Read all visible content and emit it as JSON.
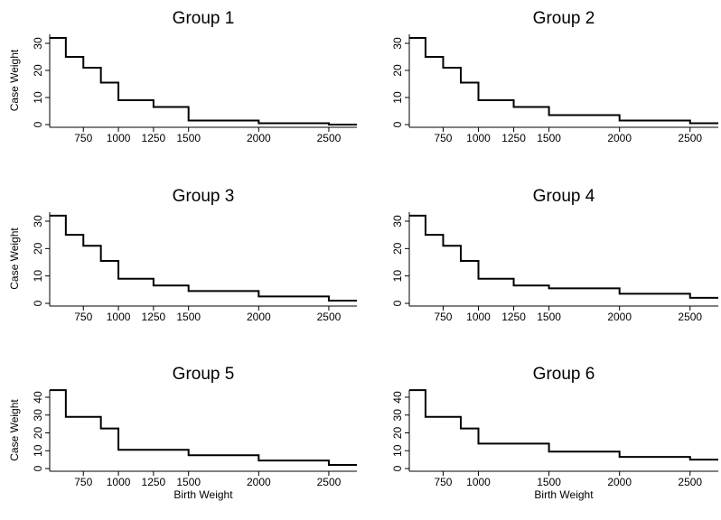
{
  "chart_data": [
    {
      "type": "line",
      "title": "Group 1",
      "xlabel": "",
      "ylabel": "Case Weight",
      "xlim": [
        510,
        2700
      ],
      "ylim": [
        0,
        32
      ],
      "xticks": [
        750,
        1000,
        1250,
        1500,
        2000,
        2500
      ],
      "xticklabels": [
        "750",
        "1000",
        "1250",
        "1500",
        "2000",
        "2500"
      ],
      "yticks": [
        0,
        10,
        20,
        30
      ],
      "yticklabels": [
        "0",
        "10",
        "20",
        "30"
      ],
      "step": "post",
      "x": [
        510,
        625,
        750,
        875,
        1000,
        1250,
        1500,
        2000,
        2500,
        2700
      ],
      "y": [
        32,
        25,
        21,
        15.5,
        9,
        6.5,
        1.5,
        0.5,
        0,
        0
      ]
    },
    {
      "type": "line",
      "title": "Group 2",
      "xlabel": "",
      "ylabel": "",
      "xlim": [
        510,
        2700
      ],
      "ylim": [
        0,
        32
      ],
      "xticks": [
        750,
        1000,
        1250,
        1500,
        2000,
        2500
      ],
      "xticklabels": [
        "750",
        "1000",
        "1250",
        "1500",
        "2000",
        "2500"
      ],
      "yticks": [
        0,
        10,
        20,
        30
      ],
      "yticklabels": [
        "0",
        "10",
        "20",
        "30"
      ],
      "step": "post",
      "x": [
        510,
        625,
        750,
        875,
        1000,
        1250,
        1500,
        2000,
        2500,
        2700
      ],
      "y": [
        32,
        25,
        21,
        15.5,
        9,
        6.5,
        3.5,
        1.5,
        0.5,
        0.5
      ]
    },
    {
      "type": "line",
      "title": "Group 3",
      "xlabel": "",
      "ylabel": "Case Weight",
      "xlim": [
        510,
        2700
      ],
      "ylim": [
        0,
        32
      ],
      "xticks": [
        750,
        1000,
        1250,
        1500,
        2000,
        2500
      ],
      "xticklabels": [
        "750",
        "1000",
        "1250",
        "1500",
        "2000",
        "2500"
      ],
      "yticks": [
        0,
        10,
        20,
        30
      ],
      "yticklabels": [
        "0",
        "10",
        "20",
        "30"
      ],
      "step": "post",
      "x": [
        510,
        625,
        750,
        875,
        1000,
        1250,
        1500,
        2000,
        2500,
        2700
      ],
      "y": [
        32,
        25,
        21,
        15.5,
        9,
        6.5,
        4.5,
        2.5,
        1,
        1
      ]
    },
    {
      "type": "line",
      "title": "Group 4",
      "xlabel": "",
      "ylabel": "",
      "xlim": [
        510,
        2700
      ],
      "ylim": [
        0,
        32
      ],
      "xticks": [
        750,
        1000,
        1250,
        1500,
        2000,
        2500
      ],
      "xticklabels": [
        "750",
        "1000",
        "1250",
        "1500",
        "2000",
        "2500"
      ],
      "yticks": [
        0,
        10,
        20,
        30
      ],
      "yticklabels": [
        "0",
        "10",
        "20",
        "30"
      ],
      "step": "post",
      "x": [
        510,
        625,
        750,
        875,
        1000,
        1250,
        1500,
        2000,
        2500,
        2700
      ],
      "y": [
        32,
        25,
        21,
        15.5,
        9,
        6.5,
        5.5,
        3.5,
        2,
        2
      ]
    },
    {
      "type": "line",
      "title": "Group 5",
      "xlabel": "Birth Weight",
      "ylabel": "Case Weight",
      "xlim": [
        510,
        2700
      ],
      "ylim": [
        0,
        44
      ],
      "xticks": [
        750,
        1000,
        1250,
        1500,
        2000,
        2500
      ],
      "xticklabels": [
        "750",
        "1000",
        "1250",
        "1500",
        "2000",
        "2500"
      ],
      "yticks": [
        0,
        10,
        20,
        30,
        40
      ],
      "yticklabels": [
        "0",
        "10",
        "20",
        "30",
        "40"
      ],
      "step": "post",
      "x": [
        510,
        625,
        875,
        1000,
        1500,
        2000,
        2500,
        2700
      ],
      "y": [
        44,
        29,
        22.5,
        10.5,
        7.5,
        4.5,
        2,
        2
      ]
    },
    {
      "type": "line",
      "title": "Group 6",
      "xlabel": "Birth Weight",
      "ylabel": "",
      "xlim": [
        510,
        2700
      ],
      "ylim": [
        0,
        44
      ],
      "xticks": [
        750,
        1000,
        1500,
        2000,
        2500
      ],
      "xticklabels": [
        "750",
        "1000",
        "1500",
        "2000",
        "2500"
      ],
      "yticks": [
        0,
        10,
        20,
        30,
        40
      ],
      "yticklabels": [
        "0",
        "10",
        "20",
        "30",
        "40"
      ],
      "step": "post",
      "x": [
        510,
        625,
        875,
        1000,
        1500,
        2000,
        2500,
        2700
      ],
      "y": [
        44,
        29,
        22.5,
        14,
        9.5,
        6.5,
        5,
        5
      ]
    }
  ]
}
